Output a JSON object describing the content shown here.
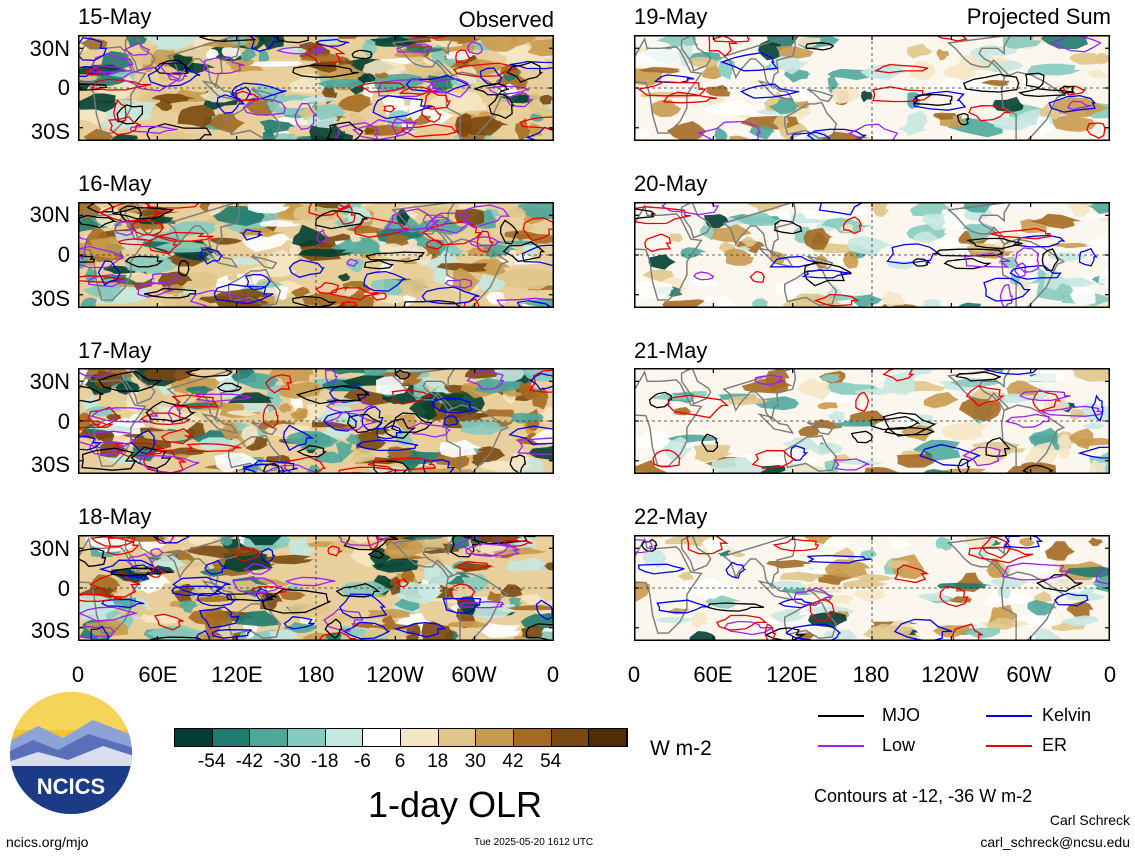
{
  "titles": {
    "left": "Observed",
    "right": "Projected Sum"
  },
  "panels": {
    "left": [
      "15-May",
      "16-May",
      "17-May",
      "18-May"
    ],
    "right": [
      "19-May",
      "20-May",
      "21-May",
      "22-May"
    ]
  },
  "lat_labels": [
    "30N",
    "0",
    "30S"
  ],
  "lon_labels": [
    "0",
    "60E",
    "120E",
    "180",
    "120W",
    "60W",
    "0"
  ],
  "colorbar": {
    "colors": [
      "#023f32",
      "#1f7a6f",
      "#4fa79c",
      "#86cbbf",
      "#c7e8e1",
      "#ffffff",
      "#f5e6c4",
      "#e0c589",
      "#c99a4e",
      "#a56a22",
      "#7a4810",
      "#4f2d06"
    ],
    "labels": [
      "-54",
      "-42",
      "-30",
      "-18",
      "-6",
      "6",
      "18",
      "30",
      "42",
      "54"
    ],
    "units": "W m-2"
  },
  "chart_data": {
    "type": "heatmap",
    "title": "1-day OLR",
    "units": "W m-2",
    "x_axis": {
      "ticks": [
        "0",
        "60E",
        "120E",
        "180",
        "120W",
        "60W",
        "0"
      ],
      "range": [
        0,
        360
      ]
    },
    "y_axis": {
      "ticks": [
        "30N",
        "0",
        "30S"
      ],
      "range": [
        -40,
        40
      ]
    },
    "color_levels": [
      -54,
      -42,
      -30,
      -18,
      -6,
      6,
      18,
      30,
      42,
      54
    ],
    "observed_dates": [
      "15-May",
      "16-May",
      "17-May",
      "18-May"
    ],
    "projected_dates": [
      "19-May",
      "20-May",
      "21-May",
      "22-May"
    ],
    "contour_levels": [
      -12,
      -36
    ],
    "series": [
      {
        "name": "MJO",
        "color": "#000000"
      },
      {
        "name": "Kelvin",
        "color": "#0000ee"
      },
      {
        "name": "Low",
        "color": "#a020f0"
      },
      {
        "name": "ER",
        "color": "#ee0000"
      }
    ]
  },
  "legend": {
    "items": [
      {
        "name": "MJO",
        "color": "#000000"
      },
      {
        "name": "Kelvin",
        "color": "#0000ee"
      },
      {
        "name": "Low",
        "color": "#a020f0"
      },
      {
        "name": "ER",
        "color": "#ee0000"
      }
    ],
    "contours_note": "Contours at -12, -36 W m-2"
  },
  "logo": {
    "text": "NCICS"
  },
  "footer": {
    "url": "ncics.org/mjo",
    "timestamp": "Tue 2025-05-20 1612 UTC",
    "author": "Carl Schreck",
    "email": "carl_schreck@ncsu.edu"
  }
}
